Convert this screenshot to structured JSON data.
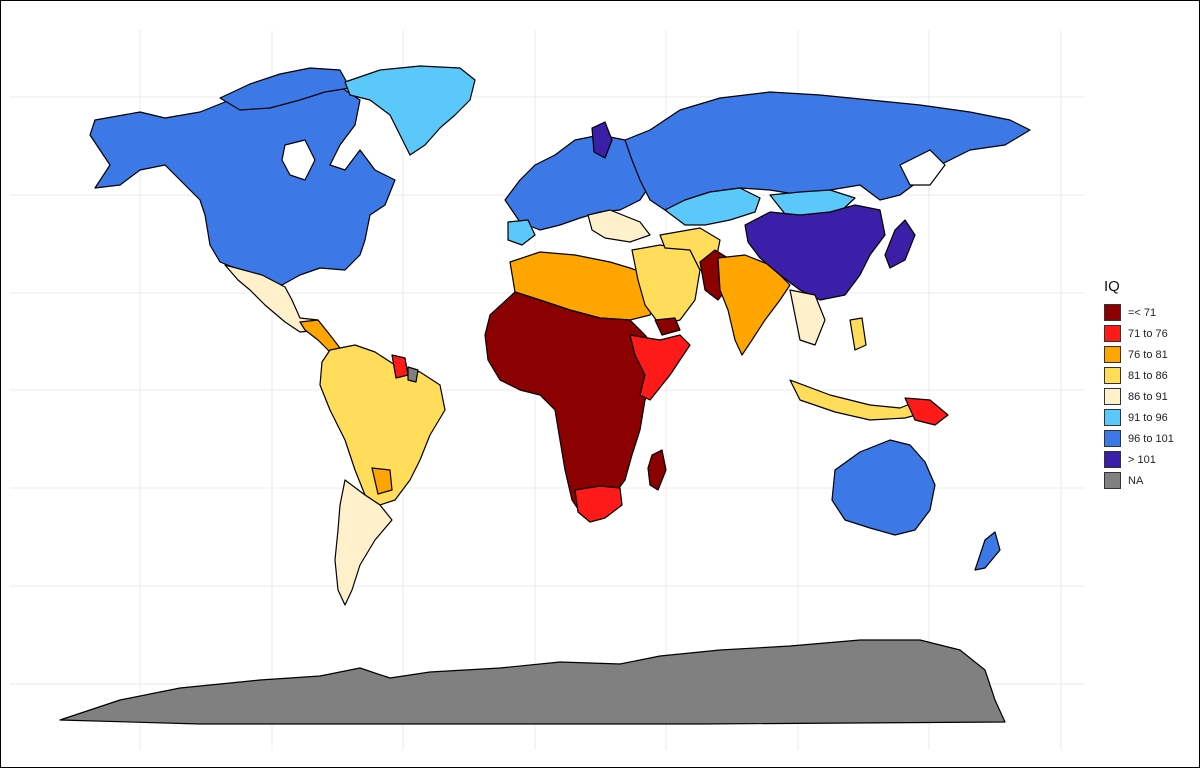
{
  "legend": {
    "title": "IQ",
    "items": [
      {
        "label": "=< 71",
        "color": "#8b0000"
      },
      {
        "label": "71 to 76",
        "color": "#ff1a1a"
      },
      {
        "label": "76 to 81",
        "color": "#ffa500"
      },
      {
        "label": "81 to 86",
        "color": "#ffdc5a"
      },
      {
        "label": "86 to 91",
        "color": "#fff0cc"
      },
      {
        "label": "91 to 96",
        "color": "#5bc8fa"
      },
      {
        "label": "96 to 101",
        "color": "#3c78e6"
      },
      {
        "label": "> 101",
        "color": "#3c1fa8"
      },
      {
        "label": "NA",
        "color": "#808080"
      }
    ]
  },
  "colors": {
    "grid": "#ebebeb",
    "land_outline": "#000000",
    "background": "#ffffff"
  }
}
